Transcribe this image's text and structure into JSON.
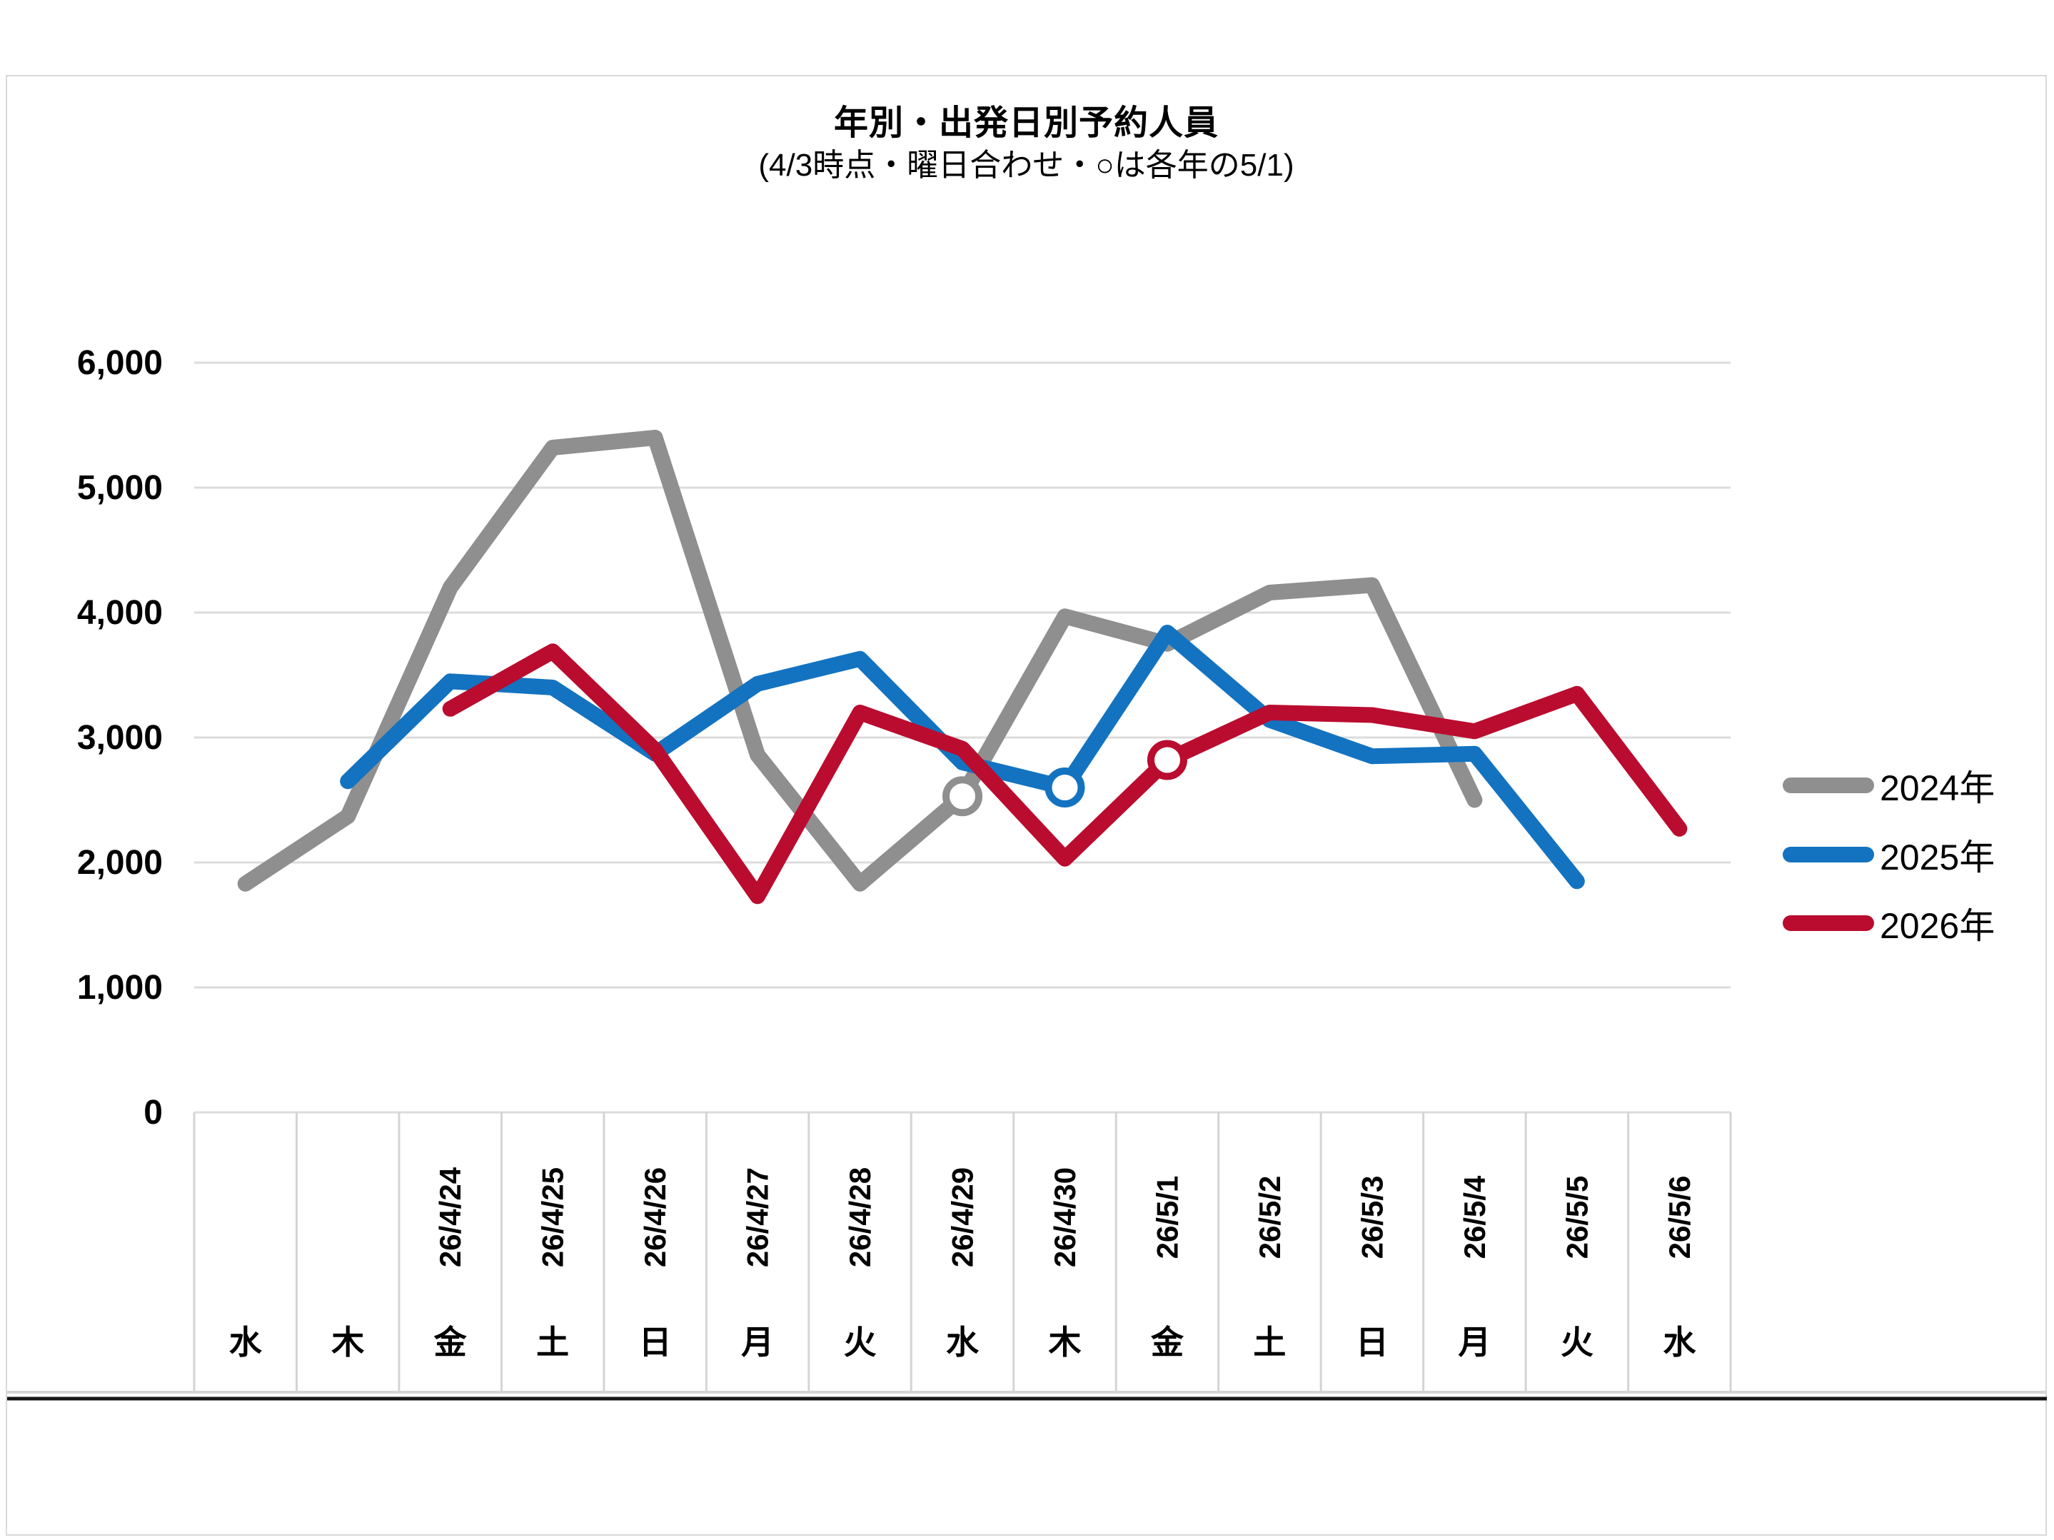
{
  "page": {
    "title": "年別・出発日別予約人員",
    "subtitle": "(4/3時点・曜日合わせ・○は各年の5/1)"
  },
  "chart_data": {
    "type": "line",
    "title": "年別・出発日別予約人員",
    "subtitle": "(4/3時点・曜日合わせ・○は各年の5/1)",
    "ylabel": "",
    "xlabel": "",
    "ylim": [
      0,
      6000
    ],
    "grid": true,
    "legend_position": "right",
    "y_ticks": [
      "0",
      "1,000",
      "2,000",
      "3,000",
      "4,000",
      "5,000",
      "6,000"
    ],
    "y_tick_values": [
      0,
      1000,
      2000,
      3000,
      4000,
      5000,
      6000
    ],
    "categories_date": [
      "",
      "",
      "26/4/24",
      "26/4/25",
      "26/4/26",
      "26/4/27",
      "26/4/28",
      "26/4/29",
      "26/4/30",
      "26/5/1",
      "26/5/2",
      "26/5/3",
      "26/5/4",
      "26/5/5",
      "26/5/6"
    ],
    "categories_day": [
      "水",
      "木",
      "金",
      "土",
      "日",
      "月",
      "火",
      "水",
      "木",
      "金",
      "土",
      "日",
      "月",
      "火",
      "水"
    ],
    "marker_note": "○は各年の5/1",
    "series": [
      {
        "name": "2024年",
        "color": "#8f8f8f",
        "values": [
          1830,
          2370,
          4200,
          5320,
          5400,
          2860,
          1830,
          2530,
          3970,
          3750,
          4160,
          4220,
          2500,
          null,
          null
        ],
        "marker_index": 7
      },
      {
        "name": "2025年",
        "color": "#1373c0",
        "values": [
          null,
          2650,
          3450,
          3400,
          2870,
          3430,
          3630,
          2800,
          2600,
          3840,
          3140,
          2850,
          2870,
          1850,
          null
        ],
        "marker_index": 8
      },
      {
        "name": "2026年",
        "color": "#ba0c2f",
        "values": [
          null,
          null,
          3230,
          3690,
          2900,
          1730,
          3200,
          2910,
          2030,
          2820,
          3200,
          3180,
          3050,
          3350,
          2270
        ],
        "marker_index": 9
      }
    ]
  }
}
